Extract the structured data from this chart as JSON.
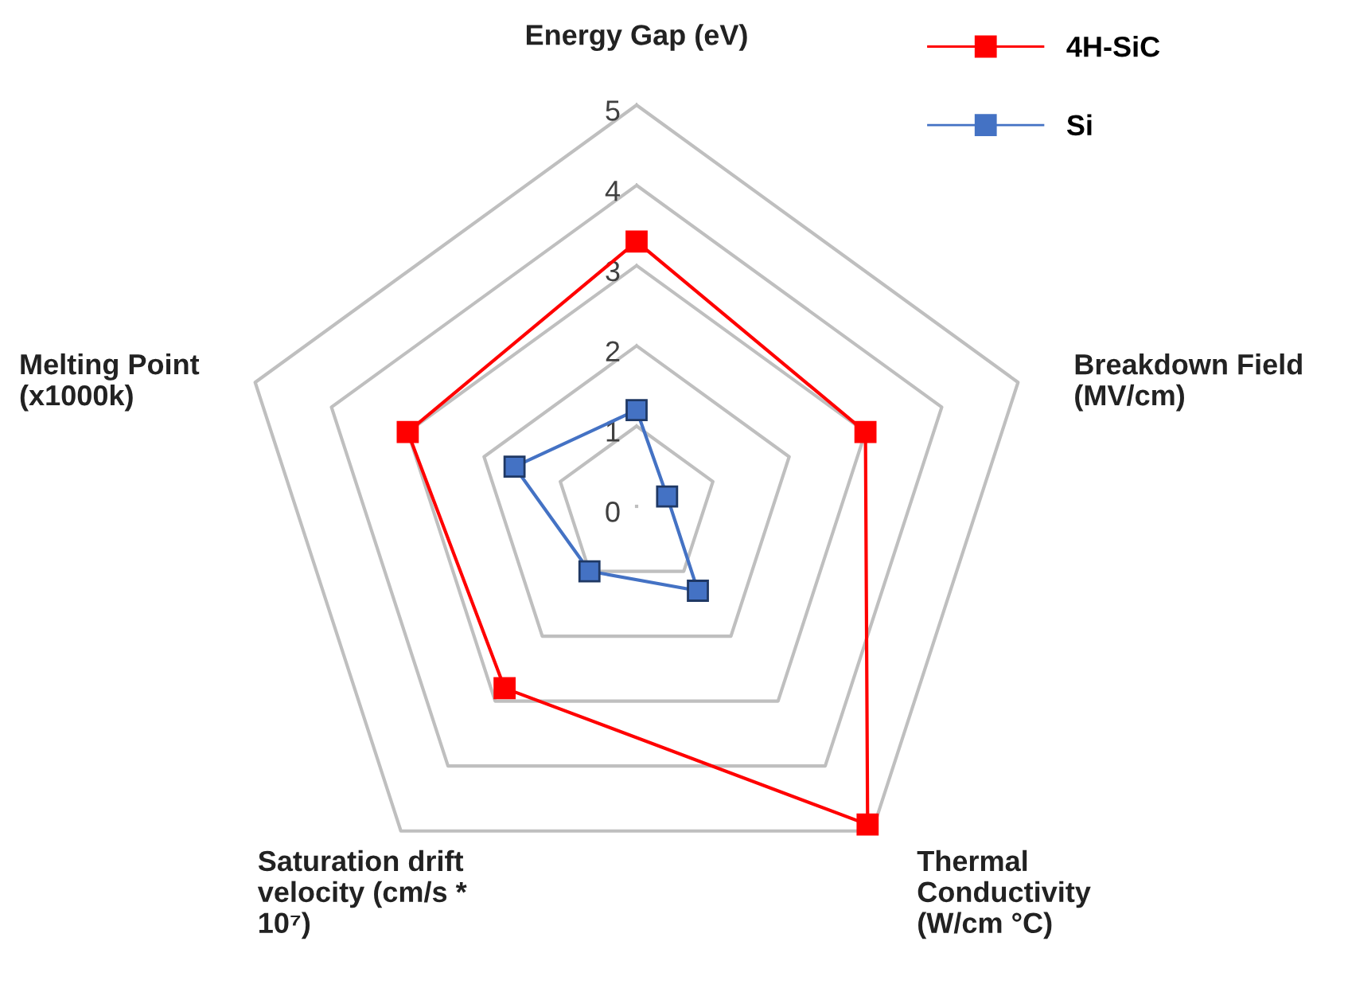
{
  "chart_data": {
    "type": "radar",
    "categories": [
      "Energy Gap (eV)",
      "Breakdown Field\n(MV/cm)",
      "Thermal\nConductivity\n(W/cm °C)",
      "Saturation drift\nvelocity (cm/s *\n10⁷)",
      "Melting Point\n(x1000k)"
    ],
    "series": [
      {
        "name": "4H-SiC",
        "color": "#ff0000",
        "values": [
          3.3,
          3.0,
          4.9,
          2.8,
          3.0
        ]
      },
      {
        "name": "Si",
        "color": "#4472c4",
        "values": [
          1.2,
          0.4,
          1.3,
          1.0,
          1.6
        ]
      }
    ],
    "ylim": [
      0,
      5
    ],
    "yticks": [
      0,
      1,
      2,
      3,
      4,
      5
    ],
    "grid": true,
    "legend": "top right",
    "marker": "square",
    "line_style": "solid"
  }
}
